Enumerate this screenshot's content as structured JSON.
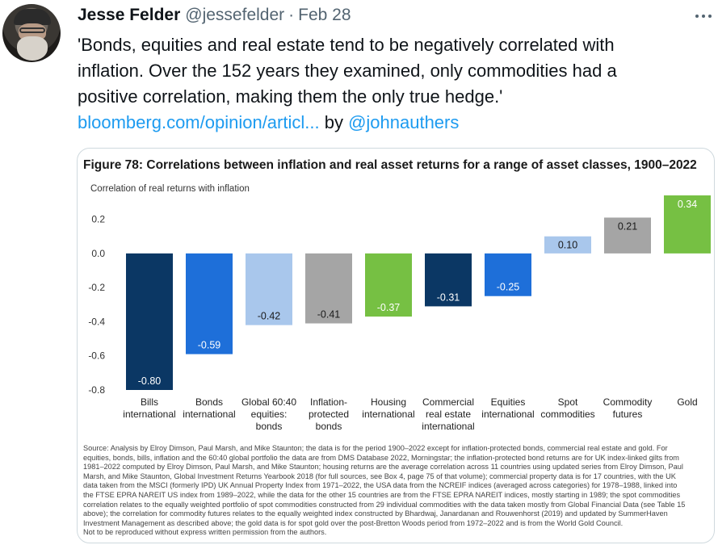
{
  "tweet": {
    "display_name": "Jesse Felder",
    "handle": "@jessefelder",
    "separator": "·",
    "date": "Feb 28",
    "text_lines": [
      "'Bonds, equities and real estate tend to be negatively correlated with",
      "inflation. Over the 152 years they examined, only commodities had a",
      "positive correlation, making them the only true hedge.'"
    ],
    "link_text": "bloomberg.com/opinion/articl...",
    "by_text": " by ",
    "mention": "@johnauthers"
  },
  "figure": {
    "title": "Figure 78: Correlations between inflation and real asset returns for a range of asset classes, 1900–2022",
    "source_lines": [
      "Source: Analysis by Elroy Dimson, Paul Marsh, and Mike Staunton; the data is for the period 1900–2022 except for inflation-protected bonds, commercial real estate and gold. For",
      "equities, bonds, bills, inflation and the 60:40 global portfolio the data are from DMS Database 2022, Morningstar; the inflation-protected bond returns are for UK index-linked gilts from",
      "1981–2022 computed by Elroy Dimson, Paul Marsh, and Mike Staunton; housing returns are the average correlation across 11 countries using updated series from Elroy Dimson, Paul",
      "Marsh, and Mike Staunton, Global Investment Returns Yearbook 2018 (for full sources, see Box 4, page 75 of that volume); commercial property data is for 17 countries, with the UK",
      "data taken from the MSCI (formerly IPD) UK Annual Property Index from 1971–2022, the USA data from the NCREIF indices (averaged across categories) for 1978–1988, linked into",
      "the FTSE EPRA NAREIT US index from 1989–2022, while the data for the other 15 countries are from the FTSE EPRA NAREIT indices, mostly starting in 1989; the spot commodities",
      "correlation relates to the equally weighted portfolio of spot commodities constructed from 29 individual commodities with the data taken mostly from Global Financial Data (see Table 15",
      "above); the correlation for commodity futures relates to the equally weighted index constructed by Bhardwaj, Janardanan and Rouwenhorst (2019) and updated by SummerHaven",
      "Investment Management as described above; the gold data is for spot gold over the post-Bretton Woods period from 1972–2022 and is from the World Gold Council.",
      "Not to be reproduced without express written permission from the authors."
    ]
  },
  "chart_data": {
    "type": "bar",
    "title": "Figure 78: Correlations between inflation and real asset returns for a range of asset classes, 1900–2022",
    "ylabel": "Correlation of real returns with inflation",
    "xlabel": "",
    "ylim": [
      -0.8,
      0.34
    ],
    "yticks": [
      "0.2",
      "0.0",
      "-0.2",
      "-0.4",
      "-0.6",
      "-0.8"
    ],
    "ytick_values": [
      0.2,
      0.0,
      -0.2,
      -0.4,
      -0.6,
      -0.8
    ],
    "grid": false,
    "legend": "none",
    "categories": [
      [
        "Bills",
        "international"
      ],
      [
        "Bonds",
        "international"
      ],
      [
        "Global 60:40",
        "equities:",
        "bonds"
      ],
      [
        "Inflation-",
        "protected",
        "bonds"
      ],
      [
        "Housing",
        "international"
      ],
      [
        "Commercial",
        "real estate",
        "international"
      ],
      [
        "Equities",
        "international"
      ],
      [
        "Spot",
        "commodities"
      ],
      [
        "Commodity",
        "futures"
      ],
      [
        "Gold"
      ]
    ],
    "values": [
      -0.8,
      -0.59,
      -0.42,
      -0.41,
      -0.37,
      -0.31,
      -0.25,
      0.1,
      0.21,
      0.34
    ],
    "value_labels": [
      "-0.80",
      "-0.59",
      "-0.42",
      "-0.41",
      "-0.37",
      "-0.31",
      "-0.25",
      "0.10",
      "0.21",
      "0.34"
    ],
    "colors": [
      "#0b3764",
      "#1e6fd9",
      "#a9c7ec",
      "#a5a5a5",
      "#76c043",
      "#0b3764",
      "#1e6fd9",
      "#a9c7ec",
      "#a5a5a5",
      "#76c043"
    ],
    "label_colors": [
      "#ffffff",
      "#ffffff",
      "#1a1a1a",
      "#1a1a1a",
      "#ffffff",
      "#ffffff",
      "#ffffff",
      "#1a1a1a",
      "#1a1a1a",
      "#ffffff"
    ]
  }
}
